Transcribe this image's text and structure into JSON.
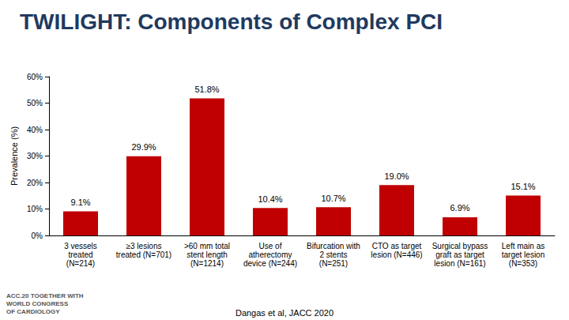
{
  "chart_data": {
    "type": "bar",
    "title": "TWILIGHT: Components of Complex PCI",
    "y_label": "Prevalence (%)",
    "categories": [
      "3 vessels\ntreated\n(N=214)",
      "≥3 lesions\ntreated (N=701)",
      ">60 mm total\nstent length\n(N=1214)",
      "Use of\natherectomy\ndevice (N=244)",
      "Bifurcation with\n2 stents\n(N=251)",
      "CTO as target\nlesion (N=446)",
      "Surgical bypass\ngraft as target\nlesion (N=161)",
      "Left main as\ntarget lesion\n(N=353)"
    ],
    "values": [
      9.1,
      29.9,
      51.8,
      10.4,
      10.7,
      19.0,
      6.9,
      15.1
    ],
    "value_labels": [
      "9.1%",
      "29.9%",
      "51.8%",
      "10.4%",
      "10.7%",
      "19.0%",
      "6.9%",
      "15.1%"
    ],
    "color": "#c00000",
    "ylim": [
      0,
      60
    ],
    "yticks": [
      {
        "value": 0,
        "label": "0%"
      },
      {
        "value": 10,
        "label": "10%"
      },
      {
        "value": 20,
        "label": "20%"
      },
      {
        "value": 30,
        "label": "30%"
      },
      {
        "value": 40,
        "label": "40%"
      },
      {
        "value": 50,
        "label": "50%"
      },
      {
        "value": 60,
        "label": "60%"
      }
    ],
    "grid": false,
    "data_labels": true,
    "annotations": [
      "Dangas et al, JACC 2020",
      "ACC.20 TOGETHER WITH\nWORLD CONGRESS\nOF CARDIOLOGY"
    ]
  }
}
